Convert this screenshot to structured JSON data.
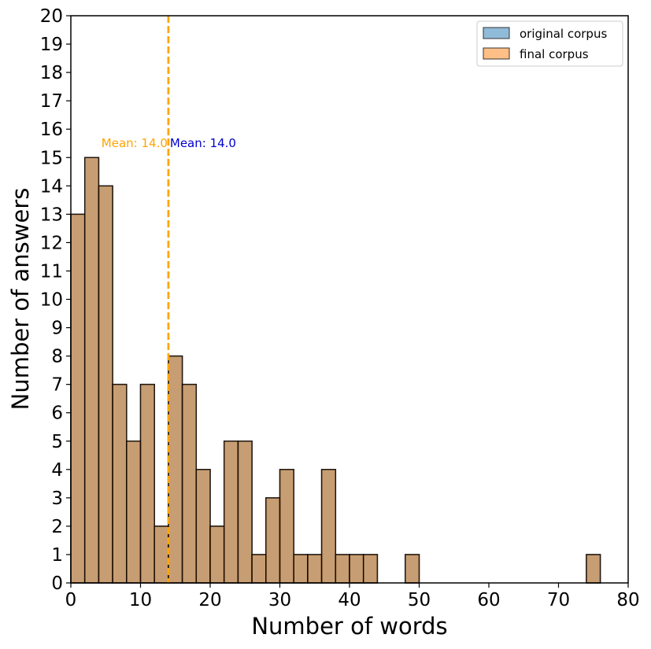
{
  "chart_data": {
    "type": "histogram",
    "xlabel": "Number of words",
    "ylabel": "Number of answers",
    "xlim": [
      0,
      80
    ],
    "ylim": [
      0,
      20
    ],
    "x_ticks": [
      0,
      10,
      20,
      30,
      40,
      50,
      60,
      70,
      80
    ],
    "y_ticks": [
      0,
      1,
      2,
      3,
      4,
      5,
      6,
      7,
      8,
      9,
      10,
      11,
      12,
      13,
      14,
      15,
      16,
      17,
      18,
      19,
      20
    ],
    "bin_width": 2,
    "series": [
      {
        "name": "original corpus",
        "color": "#1f77b4",
        "bins": [
          [
            0,
            13
          ],
          [
            2,
            15
          ],
          [
            4,
            14
          ],
          [
            6,
            7
          ],
          [
            8,
            5
          ],
          [
            10,
            7
          ],
          [
            12,
            2
          ],
          [
            14,
            8
          ],
          [
            16,
            7
          ],
          [
            18,
            4
          ],
          [
            20,
            2
          ],
          [
            22,
            5
          ],
          [
            24,
            5
          ],
          [
            26,
            1
          ],
          [
            28,
            3
          ],
          [
            30,
            4
          ],
          [
            32,
            1
          ],
          [
            34,
            1
          ],
          [
            36,
            4
          ],
          [
            38,
            1
          ],
          [
            40,
            1
          ],
          [
            42,
            1
          ],
          [
            48,
            1
          ],
          [
            74,
            1
          ]
        ]
      },
      {
        "name": "final corpus",
        "color": "#ff7f0e",
        "bins": [
          [
            0,
            13
          ],
          [
            2,
            15
          ],
          [
            4,
            14
          ],
          [
            6,
            7
          ],
          [
            8,
            5
          ],
          [
            10,
            7
          ],
          [
            12,
            2
          ],
          [
            14,
            8
          ],
          [
            16,
            7
          ],
          [
            18,
            4
          ],
          [
            20,
            2
          ],
          [
            22,
            5
          ],
          [
            24,
            5
          ],
          [
            26,
            1
          ],
          [
            28,
            3
          ],
          [
            30,
            4
          ],
          [
            32,
            1
          ],
          [
            34,
            1
          ],
          [
            36,
            4
          ],
          [
            38,
            1
          ],
          [
            40,
            1
          ],
          [
            42,
            1
          ],
          [
            48,
            1
          ],
          [
            74,
            1
          ]
        ]
      }
    ],
    "mean_lines": [
      {
        "value": 14.0,
        "label": "Mean: 14.0",
        "color": "#ffa500",
        "label_side": "left"
      },
      {
        "value": 14.0,
        "label": "Mean: 14.0",
        "color": "#0000cc",
        "label_side": "right"
      }
    ],
    "legend": {
      "placement": "top-right",
      "entries": [
        "original corpus",
        "final corpus"
      ]
    },
    "grid": false
  }
}
